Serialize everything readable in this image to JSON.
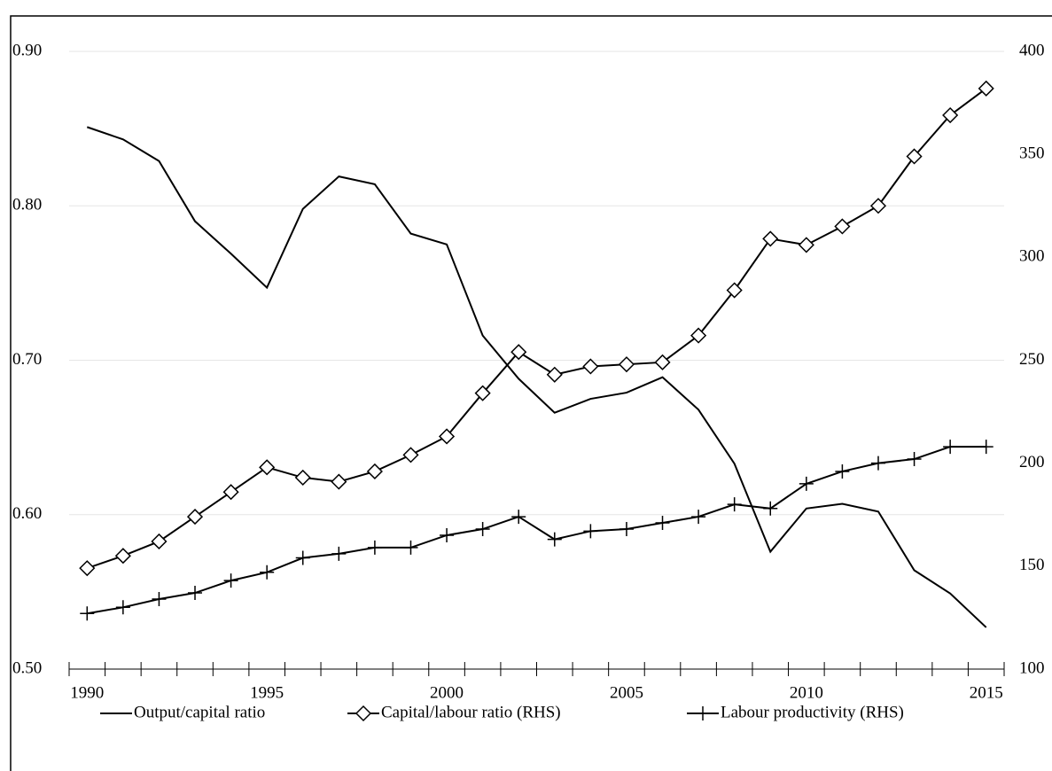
{
  "chart_data": {
    "type": "line",
    "categories": [
      "1990",
      null,
      null,
      null,
      null,
      "1995",
      null,
      null,
      null,
      null,
      "2000",
      null,
      null,
      null,
      null,
      "2005",
      null,
      null,
      null,
      null,
      "2010",
      null,
      null,
      null,
      null,
      "2015"
    ],
    "series": [
      {
        "name": "Output/capital ratio",
        "color": "#000000",
        "marker": "none",
        "axis": "y",
        "values": [
          0.851,
          0.843,
          0.829,
          0.79,
          0.769,
          0.747,
          0.798,
          0.819,
          0.814,
          0.782,
          0.775,
          0.716,
          0.688,
          0.666,
          0.675,
          0.679,
          0.689,
          0.668,
          0.633,
          0.576,
          0.604,
          0.607,
          0.602,
          0.564,
          0.549,
          0.527
        ]
      },
      {
        "name": "Capital/labour ratio (RHS)",
        "color": "#000000",
        "marker": "diamond",
        "axis": "y2",
        "values": [
          149,
          155,
          162,
          174,
          186,
          198,
          193,
          191,
          196,
          204,
          213,
          234,
          254,
          243,
          247,
          248,
          249,
          262,
          284,
          309,
          306,
          315,
          325,
          349,
          369,
          382
        ]
      },
      {
        "name": "Labour productivity (RHS)",
        "color": "#000000",
        "marker": "plus",
        "axis": "y2",
        "values": [
          127,
          130,
          134,
          137,
          143,
          147,
          154,
          156,
          159,
          159,
          165,
          168,
          174,
          163,
          167,
          168,
          171,
          174,
          180,
          178,
          190,
          196,
          200,
          202,
          208,
          208
        ]
      }
    ],
    "ylim": [
      0.5,
      0.9
    ],
    "yticks": [
      {
        "value": 0.5,
        "label": "0.50"
      },
      {
        "value": 0.6,
        "label": "0.60"
      },
      {
        "value": 0.7,
        "label": "0.70"
      },
      {
        "value": 0.8,
        "label": "0.80"
      },
      {
        "value": 0.9,
        "label": "0.90"
      }
    ],
    "y2lim": [
      100,
      400
    ],
    "y2ticks": [
      100,
      150,
      200,
      250,
      300,
      350,
      400
    ],
    "grid": true,
    "legend": "bottom"
  }
}
